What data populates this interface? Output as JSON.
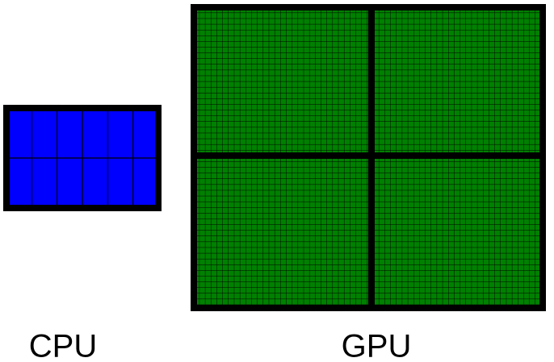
{
  "cpu": {
    "label": "CPU"
  },
  "gpu": {
    "label": "GPU"
  }
}
